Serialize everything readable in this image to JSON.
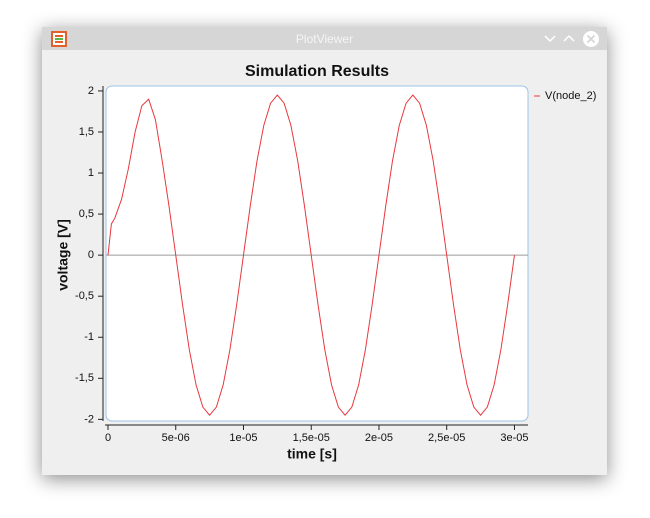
{
  "window": {
    "title": "PlotViewer"
  },
  "chart_data": {
    "type": "line",
    "title": "Simulation Results",
    "x_label": "time [s]",
    "y_label": "voltage [V]",
    "x": [
      0,
      2.5e-07,
      5e-07,
      1e-06,
      1.5e-06,
      2e-06,
      2.5e-06,
      3e-06,
      3.5e-06,
      4e-06,
      4.5e-06,
      5e-06,
      5.5e-06,
      6e-06,
      6.5e-06,
      7e-06,
      7.5e-06,
      8e-06,
      8.5e-06,
      9e-06,
      9.5e-06,
      1e-05,
      1.05e-05,
      1.1e-05,
      1.15e-05,
      1.2e-05,
      1.25e-05,
      1.3e-05,
      1.35e-05,
      1.4e-05,
      1.45e-05,
      1.5e-05,
      1.55e-05,
      1.6e-05,
      1.65e-05,
      1.7e-05,
      1.75e-05,
      1.8e-05,
      1.85e-05,
      1.9e-05,
      1.95e-05,
      2e-05,
      2.05e-05,
      2.1e-05,
      2.15e-05,
      2.2e-05,
      2.25e-05,
      2.3e-05,
      2.35e-05,
      2.4e-05,
      2.45e-05,
      2.5e-05,
      2.55e-05,
      2.6e-05,
      2.65e-05,
      2.7e-05,
      2.75e-05,
      2.8e-05,
      2.85e-05,
      2.9e-05,
      2.95e-05,
      3e-05
    ],
    "series": [
      {
        "name": "V(node_2)",
        "color": "#e8383d",
        "values": [
          0,
          0.38,
          0.45,
          0.68,
          1.05,
          1.5,
          1.82,
          1.9,
          1.65,
          1.15,
          0.6,
          0,
          -0.6,
          -1.15,
          -1.58,
          -1.85,
          -1.95,
          -1.85,
          -1.58,
          -1.15,
          -0.6,
          0,
          0.6,
          1.15,
          1.58,
          1.85,
          1.95,
          1.85,
          1.58,
          1.15,
          0.6,
          0,
          -0.6,
          -1.15,
          -1.58,
          -1.85,
          -1.95,
          -1.85,
          -1.58,
          -1.15,
          -0.6,
          0,
          0.6,
          1.15,
          1.58,
          1.85,
          1.95,
          1.85,
          1.58,
          1.15,
          0.6,
          0,
          -0.6,
          -1.15,
          -1.58,
          -1.85,
          -1.95,
          -1.85,
          -1.58,
          -1.15,
          -0.6,
          0
        ]
      }
    ],
    "xlim": [
      0,
      3.1e-05
    ],
    "ylim": [
      -2.02,
      2.06
    ],
    "xticks": [
      0,
      {
        "value": 5e-06,
        "label": "5e-06"
      },
      {
        "value": 1e-05,
        "label": "1e-05"
      },
      {
        "value": 1.5e-05,
        "label": "1,5e-05"
      },
      {
        "value": 2e-05,
        "label": "2e-05"
      },
      {
        "value": 2.5e-05,
        "label": "2,5e-05"
      },
      {
        "value": 3e-05,
        "label": "3e-05"
      }
    ],
    "yticks": [
      -2,
      {
        "value": -1.5,
        "label": "-1,5"
      },
      -1,
      {
        "value": -0.5,
        "label": "-0,5"
      },
      0,
      {
        "value": 0.5,
        "label": "0,5"
      },
      1,
      {
        "value": 1.5,
        "label": "1,5"
      },
      2
    ],
    "zero_line": true,
    "legend": "right"
  }
}
